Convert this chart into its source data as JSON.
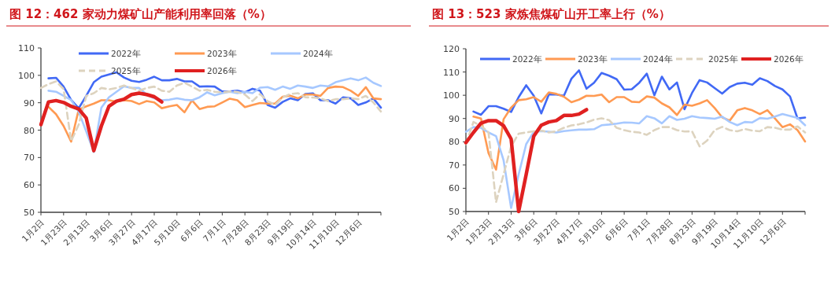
{
  "chart_data": [
    {
      "type": "line",
      "title": "图 12：462 家动力煤矿山产能利用率回落（%）",
      "categories": [
        "1月2日",
        null,
        null,
        "1月23日",
        null,
        null,
        "2月13日",
        null,
        null,
        "3月6日",
        null,
        null,
        "3月27日",
        null,
        null,
        "4月17日",
        null,
        null,
        "5月10日",
        null,
        null,
        "6月6日",
        null,
        null,
        "7月1日",
        null,
        null,
        "7月28日",
        null,
        null,
        "8月23日",
        null,
        null,
        "9月19日",
        null,
        null,
        "10月14日",
        null,
        null,
        "11月10日",
        null,
        null,
        "12月6日",
        null,
        null,
        null
      ],
      "ylim": [
        50,
        110
      ],
      "yticks": [
        50,
        60,
        70,
        80,
        90,
        100,
        110
      ],
      "legend": "top",
      "series": [
        {
          "name": "2022年",
          "color": "#4169f5",
          "values": [
            null,
            98.9,
            99.1,
            95.9,
            91,
            88,
            92.5,
            97.5,
            99.5,
            100.3,
            101.1,
            99.2,
            98,
            97.6,
            98.4,
            99.5,
            98.2,
            98.2,
            98.7,
            97.8,
            97.8,
            95.9,
            96,
            95.9,
            94.1,
            94.1,
            94.4,
            93.8,
            95.1,
            94.4,
            89.2,
            88.2,
            90.3,
            91.6,
            90.9,
            93.2,
            93.4,
            90.9,
            90.9,
            89.7,
            92,
            91.6,
            89.2,
            90.1,
            91.6,
            88.2
          ]
        },
        {
          "name": "2023年",
          "color": "#ff9a52",
          "values": [
            null,
            88.5,
            85.8,
            81.5,
            75.8,
            87.5,
            88.7,
            89.7,
            90.9,
            90.9,
            90.4,
            90.9,
            90.6,
            89.5,
            90.6,
            90.1,
            88,
            88.7,
            89.2,
            86.5,
            90.9,
            87.7,
            88.5,
            88.7,
            90.1,
            91.5,
            90.9,
            88.4,
            89.2,
            89.9,
            89.7,
            89.7,
            92.2,
            92.6,
            91.6,
            93,
            93,
            92.5,
            95.4,
            95.9,
            95.7,
            94.4,
            92.5,
            95.7,
            91.6,
            91.3
          ]
        },
        {
          "name": "2024年",
          "color": "#a6c8ff",
          "values": [
            null,
            94.4,
            94.0,
            92.5,
            91,
            86.7,
            79.5,
            72,
            88.2,
            92,
            94,
            96,
            95.4,
            95.4,
            93,
            91.6,
            90.9,
            91.1,
            91.6,
            91.1,
            90.9,
            92,
            93.8,
            92.7,
            93.5,
            94,
            93.5,
            94,
            93.5,
            95.5,
            95.7,
            94.7,
            95.9,
            95.1,
            96.3,
            95.9,
            95.4,
            96.3,
            96,
            97.5,
            98.2,
            98.9,
            98.2,
            99.2,
            97.3,
            96.1
          ]
        },
        {
          "name": "2025年",
          "color": "#ddd3bf",
          "line_style": "dashed",
          "values": [
            95.4,
            96.8,
            97.8,
            95,
            76,
            82,
            92.5,
            93.5,
            95.4,
            94.9,
            95.4,
            96.3,
            95.4,
            94.4,
            95.4,
            95.9,
            94.4,
            94,
            96.3,
            97.3,
            95.9,
            94.4,
            94.7,
            94,
            93.8,
            94.1,
            94,
            93,
            90.6,
            93.2,
            90.6,
            89.2,
            91.9,
            93.2,
            93.5,
            92,
            91.9,
            91.6,
            90.6,
            91.3,
            91.3,
            91.6,
            91.3,
            92.5,
            90.1,
            86.8
          ]
        },
        {
          "name": "2026年",
          "color": "#e02020",
          "values": [
            82,
            90.3,
            90.8,
            90.1,
            88.7,
            87.7,
            84.4,
            72.5,
            81.5,
            88.7,
            90.6,
            91.3,
            93,
            93.5,
            93,
            92.2,
            90.3,
            null,
            null,
            null,
            null,
            null,
            null,
            null,
            null,
            null,
            null,
            null,
            null,
            null,
            null,
            null,
            null,
            null,
            null,
            null,
            null,
            null,
            null,
            null,
            null,
            null,
            null,
            null,
            null,
            null
          ]
        }
      ]
    },
    {
      "type": "line",
      "title": "图 13：523 家炼焦煤矿山开工率上行（%）",
      "categories": [
        "1月2日",
        null,
        null,
        "1月23日",
        null,
        null,
        "2月13日",
        null,
        null,
        "3月6日",
        null,
        null,
        "3月27日",
        null,
        null,
        "4月17日",
        null,
        null,
        "5月10日",
        null,
        null,
        "6月6日",
        null,
        null,
        "7月1日",
        null,
        null,
        "7月28日",
        null,
        null,
        "8月23日",
        null,
        null,
        "9月19日",
        null,
        null,
        "10月14日",
        null,
        null,
        "11月10日",
        null,
        null,
        "12月6日",
        null,
        null,
        null
      ],
      "ylim": [
        50,
        120
      ],
      "yticks": [
        50,
        60,
        70,
        80,
        90,
        100,
        110,
        120
      ],
      "legend": "top",
      "series": [
        {
          "name": "2022年",
          "color": "#4169f5",
          "values": [
            null,
            93,
            91.6,
            95.3,
            95.3,
            94.2,
            92.8,
            99.2,
            104.3,
            99.8,
            92.2,
            100.3,
            100.3,
            99.8,
            107.1,
            110.7,
            102.8,
            105.4,
            109.6,
            108.4,
            106.9,
            102.4,
            102.6,
            105.4,
            109.3,
            100,
            108,
            102.5,
            105.5,
            94,
            101,
            106.5,
            105.5,
            103.1,
            100.7,
            103.5,
            105,
            105.4,
            104.5,
            107.3,
            106.1,
            104,
            102.5,
            99.5,
            90,
            90.4
          ]
        },
        {
          "name": "2023年",
          "color": "#ff9a52",
          "values": [
            null,
            90.8,
            90,
            75.1,
            68,
            89.7,
            94.7,
            97.9,
            98.3,
            99.2,
            97.2,
            101.2,
            100.6,
            99.4,
            97,
            98.1,
            99.8,
            99.7,
            100.3,
            97,
            99.2,
            99.2,
            97.2,
            97,
            99.5,
            99,
            96.5,
            94.8,
            91.5,
            96,
            95.5,
            96.5,
            97.9,
            94.5,
            90.5,
            89.1,
            93.5,
            94.5,
            93.5,
            91.9,
            93.6,
            90,
            86.3,
            87.5,
            85,
            80.1
          ]
        },
        {
          "name": "2024年",
          "color": "#a6c8ff",
          "values": [
            84.3,
            86.3,
            86,
            84,
            82.4,
            72,
            51.5,
            66,
            79,
            84.2,
            84.6,
            84.3,
            84,
            84.6,
            84.9,
            85.2,
            85.2,
            85.4,
            87.1,
            87.4,
            87.8,
            88.3,
            88.2,
            87.9,
            91,
            90.1,
            87.9,
            91,
            89.4,
            89.9,
            91,
            90.4,
            90.2,
            89.9,
            90.8,
            88.5,
            87.1,
            88.5,
            88.3,
            90.2,
            89.9,
            90.8,
            91.9,
            91.1,
            90.2,
            87.1
          ]
        },
        {
          "name": "2025年",
          "color": "#ddd3bf",
          "line_style": "dashed",
          "values": [
            79,
            88.5,
            86.9,
            84,
            54,
            66,
            78,
            83.5,
            84,
            84.5,
            84.8,
            84,
            84.5,
            86,
            87,
            87.5,
            88.3,
            89.5,
            90.1,
            89.3,
            86,
            85,
            84.3,
            84,
            83,
            85,
            86.3,
            86.3,
            85,
            84.4,
            84.5,
            78,
            80.5,
            85,
            86.4,
            85,
            84.5,
            85.5,
            84.8,
            84.5,
            86.3,
            86,
            85.2,
            85.2,
            86.6,
            84
          ]
        },
        {
          "name": "2026年",
          "color": "#e02020",
          "values": [
            79.6,
            84,
            88,
            89.1,
            89.1,
            86.9,
            81.2,
            50,
            66,
            82.4,
            87.1,
            88.5,
            89.1,
            91.3,
            91.3,
            91.9,
            93.8,
            null,
            null,
            null,
            null,
            null,
            null,
            null,
            null,
            null,
            null,
            null,
            null,
            null,
            null,
            null,
            null,
            null,
            null,
            null,
            null,
            null,
            null,
            null,
            null,
            null,
            null,
            null,
            null,
            null
          ]
        }
      ]
    }
  ]
}
